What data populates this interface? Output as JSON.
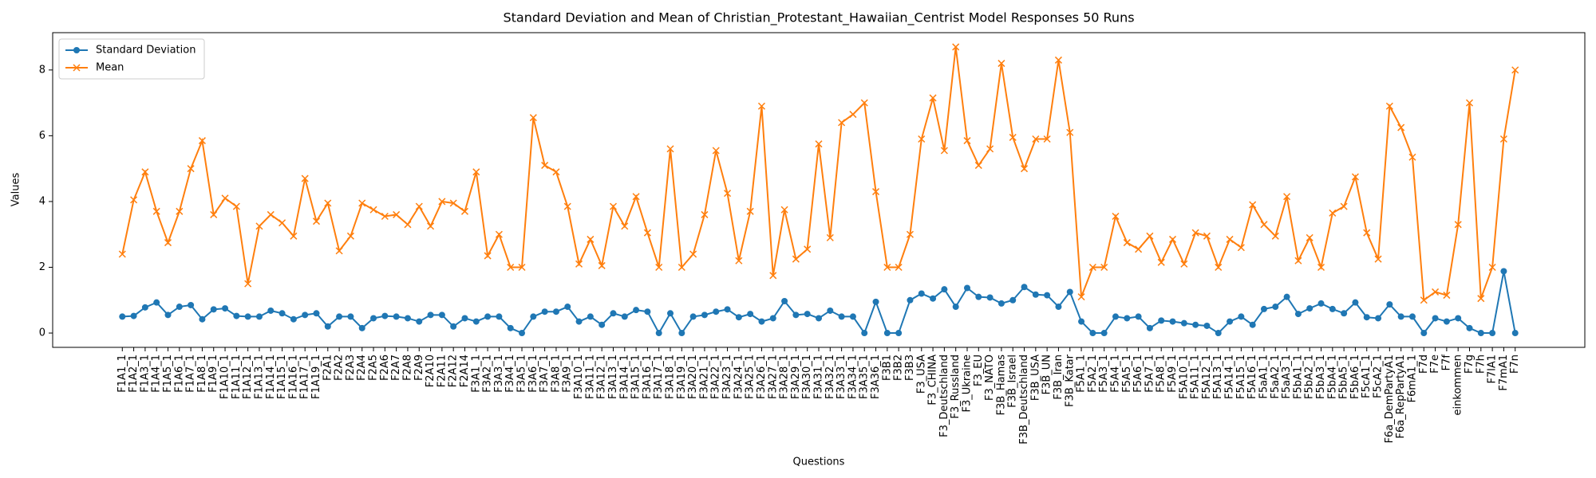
{
  "chart_data": {
    "type": "line",
    "title": "Standard Deviation and Mean of Christian_Protestant_Hawaiian_Centrist Model Responses 50 Runs",
    "x_label": "Questions",
    "y_label": "Values",
    "categories": [
      "F1A1_1",
      "F1A2_1",
      "F1A3_1",
      "F1A4_1",
      "F1A5_1",
      "F1A6_1",
      "F1A7_1",
      "F1A8_1",
      "F1A9_1",
      "F1A10_1",
      "F1A11_1",
      "F1A12_1",
      "F1A13_1",
      "F1A14_1",
      "F1A15_1",
      "F1A16_1",
      "F1A17_1",
      "F1A19_1",
      "F2A1",
      "F2A2",
      "F2A3",
      "F2A4",
      "F2A5",
      "F2A6",
      "F2A7",
      "F2A8",
      "F2A9",
      "F2A10",
      "F2A11",
      "F2A12",
      "F2A14",
      "F3A1_1",
      "F3A2_1",
      "F3A3_1",
      "F3A4_1",
      "F3A5_1",
      "F3A6_1",
      "F3A7_1",
      "F3A8_1",
      "F3A9_1",
      "F3A10_1",
      "F3A11_1",
      "F3A12_1",
      "F3A13_1",
      "F3A14_1",
      "F3A15_1",
      "F3A16_1",
      "F3A17_1",
      "F3A18_1",
      "F3A19_1",
      "F3A20_1",
      "F3A21_1",
      "F3A22_1",
      "F3A23_1",
      "F3A24_1",
      "F3A25_1",
      "F3A26_1",
      "F3A27_1",
      "F3A28_1",
      "F3A29_1",
      "F3A30_1",
      "F3A31_1",
      "F3A32_1",
      "F3A33_1",
      "F3A34_1",
      "F3A35_1",
      "F3A36_1",
      "F3B1",
      "F3B2",
      "F3B3",
      "F3_USA",
      "F3_CHINA",
      "F3_Deutschland",
      "F3_Russland",
      "F3_Ukraine",
      "F3_EU",
      "F3_NATO",
      "F3B_Hamas",
      "F3B_Israel",
      "F3B_Deutschland",
      "F3B_USA",
      "F3B_UN",
      "F3B_Iran",
      "F3B_Katar",
      "F5A1_1",
      "F5A2_1",
      "F5A3_1",
      "F5A4_1",
      "F5A5_1",
      "F5A6_1",
      "F5A7_1",
      "F5A8_1",
      "F5A9_1",
      "F5A10_1",
      "F5A11_1",
      "F5A12_1",
      "F5A13_1",
      "F5A14_1",
      "F5A15_1",
      "F5A16_1",
      "F5aA1_1",
      "F5aA2_1",
      "F5aA3_1",
      "F5bA1_1",
      "F5bA2_1",
      "F5bA3_1",
      "F5bA4_1",
      "F5bA5_1",
      "F5bA6_1",
      "F5cA1_1",
      "F5cA2_1",
      "F6a_DemPartyA1",
      "F6a_RepPartyA1",
      "F6mA1_1",
      "F7d",
      "F7e",
      "F7f",
      "einkommen",
      "F7g",
      "F7h",
      "F7lA1",
      "F7mA1",
      "F7n"
    ],
    "series": [
      {
        "name": "Standard Deviation",
        "color": "#1f77b4",
        "marker": "o",
        "values": [
          0.5,
          0.52,
          0.78,
          0.93,
          0.55,
          0.8,
          0.85,
          0.42,
          0.72,
          0.75,
          0.52,
          0.5,
          0.5,
          0.68,
          0.6,
          0.42,
          0.55,
          0.6,
          0.2,
          0.5,
          0.5,
          0.15,
          0.45,
          0.52,
          0.5,
          0.45,
          0.35,
          0.55,
          0.55,
          0.2,
          0.45,
          0.35,
          0.5,
          0.5,
          0.15,
          0.0,
          0.5,
          0.65,
          0.65,
          0.8,
          0.35,
          0.5,
          0.25,
          0.6,
          0.5,
          0.7,
          0.65,
          0.0,
          0.6,
          0.0,
          0.5,
          0.55,
          0.65,
          0.72,
          0.48,
          0.58,
          0.35,
          0.45,
          0.97,
          0.55,
          0.58,
          0.45,
          0.68,
          0.5,
          0.5,
          0.0,
          0.95,
          0.0,
          0.0,
          1.0,
          1.2,
          1.05,
          1.33,
          0.8,
          1.37,
          1.1,
          1.08,
          0.9,
          1.0,
          1.4,
          1.17,
          1.15,
          0.8,
          1.25,
          0.35,
          0.0,
          0.0,
          0.5,
          0.45,
          0.5,
          0.15,
          0.38,
          0.35,
          0.3,
          0.25,
          0.22,
          0.0,
          0.35,
          0.5,
          0.25,
          0.73,
          0.8,
          1.1,
          0.58,
          0.75,
          0.9,
          0.73,
          0.6,
          0.93,
          0.48,
          0.45,
          0.87,
          0.5,
          0.5,
          0.0,
          0.45,
          0.35,
          0.45,
          0.15,
          0.0,
          0.0,
          1.88,
          0.0
        ]
      },
      {
        "name": "Mean",
        "color": "#ff7f0e",
        "marker": "x",
        "values": [
          2.4,
          4.05,
          4.9,
          3.7,
          2.75,
          3.7,
          5.0,
          5.85,
          3.6,
          4.1,
          3.85,
          1.5,
          3.25,
          3.6,
          3.35,
          2.95,
          4.7,
          3.4,
          3.95,
          2.5,
          2.95,
          3.95,
          3.75,
          3.55,
          3.6,
          3.3,
          3.85,
          3.25,
          4.0,
          3.95,
          3.7,
          4.9,
          2.35,
          3.0,
          2.0,
          2.0,
          6.55,
          5.1,
          4.9,
          3.85,
          2.1,
          2.85,
          2.05,
          3.85,
          3.25,
          4.15,
          3.05,
          2.0,
          5.6,
          2.0,
          2.4,
          3.6,
          5.55,
          4.25,
          2.2,
          3.7,
          6.9,
          1.75,
          3.75,
          2.25,
          2.55,
          5.75,
          2.9,
          6.4,
          6.65,
          7.0,
          4.3,
          2.0,
          2.0,
          3.0,
          5.9,
          7.15,
          5.55,
          8.7,
          5.85,
          5.1,
          5.6,
          8.2,
          5.95,
          5.0,
          5.9,
          5.9,
          8.3,
          6.1,
          1.1,
          2.0,
          2.0,
          3.55,
          2.75,
          2.55,
          2.95,
          2.15,
          2.85,
          2.1,
          3.05,
          2.95,
          2.0,
          2.85,
          2.6,
          3.9,
          3.3,
          2.95,
          4.15,
          2.2,
          2.9,
          2.0,
          3.65,
          3.85,
          4.75,
          3.05,
          2.25,
          6.9,
          6.25,
          5.35,
          1.0,
          1.25,
          1.15,
          3.3,
          7.0,
          1.05,
          2.0,
          5.9,
          8.0
        ]
      }
    ],
    "ylim": [
      -0.435,
      9.135
    ],
    "yticks": [
      0,
      2,
      4,
      6,
      8
    ],
    "legend": "upper left"
  }
}
